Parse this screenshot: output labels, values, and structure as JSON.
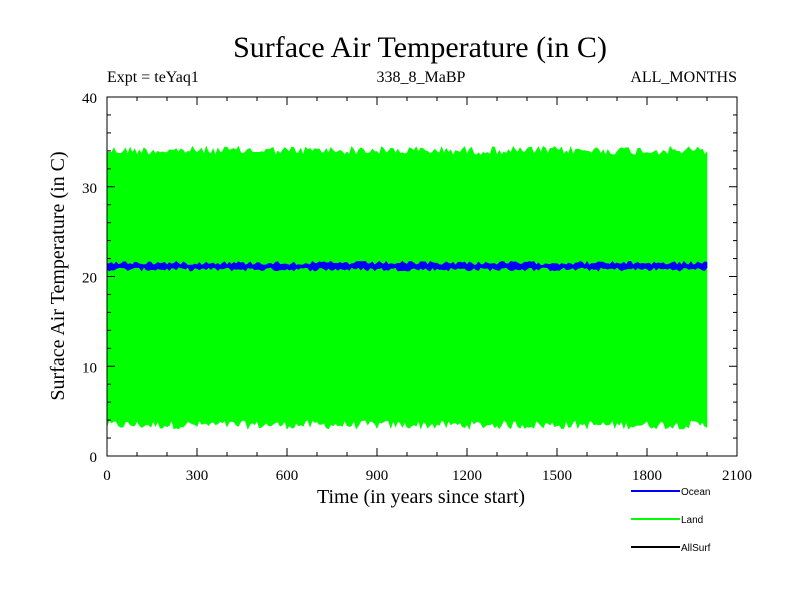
{
  "chart_data": {
    "type": "line",
    "title": "Surface Air Temperature (in C)",
    "subtitle_left": "Expt = teYaq1",
    "subtitle_center": "338_8_MaBP",
    "subtitle_right": "ALL_MONTHS",
    "xlabel": "Time (in years since start)",
    "ylabel": "Surface Air Temperature (in C)",
    "xlim": [
      0,
      2100
    ],
    "ylim": [
      0,
      40
    ],
    "xticks": [
      0,
      300,
      600,
      900,
      1200,
      1500,
      1800,
      2100
    ],
    "yticks": [
      0,
      10,
      20,
      30,
      40
    ],
    "series": [
      {
        "name": "Land",
        "color": "#00ff00",
        "x_range": [
          0,
          2000
        ],
        "approx_low": 3,
        "approx_high": 34.5,
        "approx_mean": 18
      },
      {
        "name": "Ocean",
        "color": "#0000ff",
        "x_range": [
          0,
          2000
        ],
        "approx_low": 20.6,
        "approx_high": 21.7,
        "approx_mean": 21.1
      },
      {
        "name": "AllSurf",
        "color": "#000000",
        "x_range": [
          0,
          2000
        ],
        "approx_low": null,
        "approx_high": null,
        "approx_mean": null
      }
    ],
    "legend": [
      "Ocean",
      "Land",
      "AllSurf"
    ],
    "legend_position": "bottom-right",
    "grid": false
  }
}
